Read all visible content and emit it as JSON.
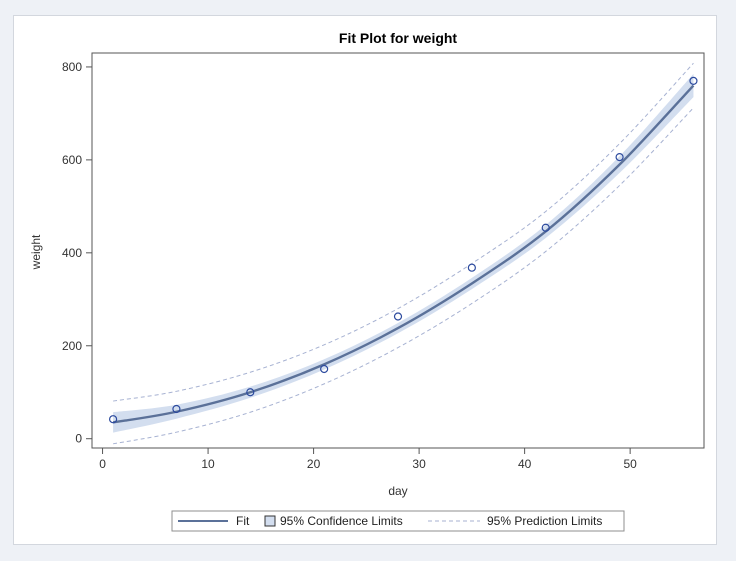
{
  "chart_data": {
    "type": "line",
    "title": "Fit Plot for weight",
    "xlabel": "day",
    "ylabel": "weight",
    "xlim": [
      -1,
      57
    ],
    "ylim": [
      -20,
      830
    ],
    "xticks": [
      0,
      10,
      20,
      30,
      40,
      50
    ],
    "yticks": [
      0,
      200,
      400,
      600,
      800
    ],
    "grid": false,
    "legend_placement": "bottom-center",
    "observations": {
      "x": [
        1,
        7,
        14,
        21,
        28,
        35,
        42,
        49,
        56
      ],
      "y": [
        42,
        64,
        100,
        150,
        263,
        368,
        454,
        606,
        770
      ]
    },
    "fit": {
      "x": [
        1,
        7,
        14,
        21,
        28,
        35,
        42,
        49,
        56
      ],
      "y": [
        35,
        58,
        100,
        160,
        238,
        334,
        446,
        590,
        760
      ]
    },
    "confidence_half_width": [
      22,
      15,
      12,
      11,
      11,
      12,
      14,
      18,
      25
    ],
    "prediction_half_width": [
      46,
      44,
      43,
      42,
      42,
      43,
      43,
      45,
      48
    ],
    "legend": [
      {
        "label": "Fit",
        "style": "line"
      },
      {
        "label": "95% Confidence Limits",
        "style": "band"
      },
      {
        "label": "95% Prediction Limits",
        "style": "dashed"
      }
    ],
    "colors": {
      "fit": "#5b7199",
      "band": "#d3deef",
      "prediction": "#a7b2d2",
      "marker": "#2c4a9e",
      "axis": "#555555"
    }
  }
}
